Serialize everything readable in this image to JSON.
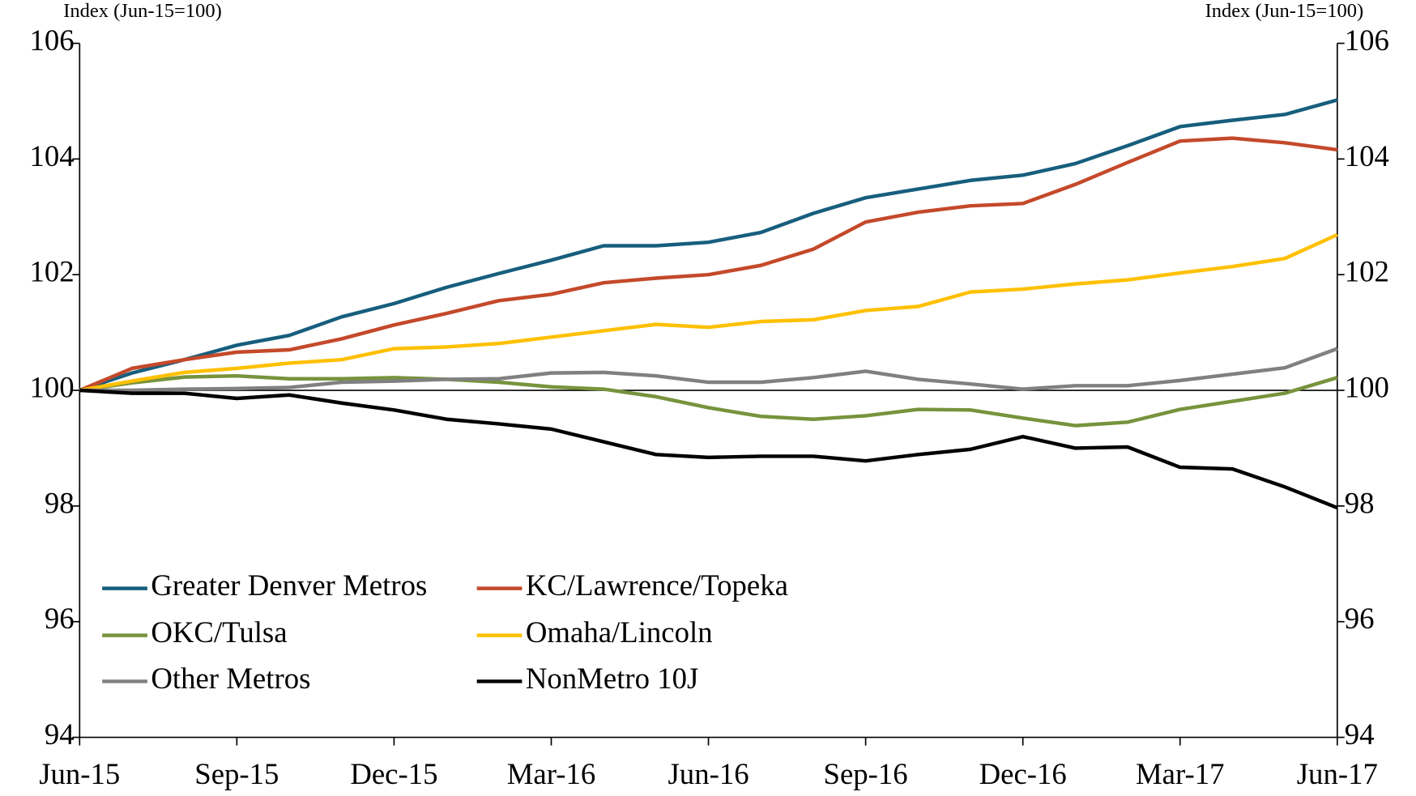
{
  "chart_data": {
    "type": "line",
    "y_label": "Index (Jun-15=100)",
    "y2_label": "Index (Jun-15=100)",
    "categories": [
      "Jun-15",
      null,
      null,
      "Sep-15",
      null,
      null,
      "Dec-15",
      null,
      null,
      "Mar-16",
      null,
      null,
      "Jun-16",
      null,
      null,
      "Sep-16",
      null,
      null,
      "Dec-16",
      null,
      null,
      "Mar-17",
      null,
      null,
      "Jun-17"
    ],
    "series": [
      {
        "name": "Greater Denver Metros",
        "color": "#175e7d",
        "values": [
          100,
          100.3,
          100.53,
          100.78,
          100.95,
          101.27,
          101.5,
          101.78,
          102.02,
          102.25,
          102.5,
          102.5,
          102.56,
          102.73,
          103.06,
          103.33,
          103.48,
          103.63,
          103.72,
          103.92,
          104.23,
          104.56,
          104.67,
          104.77,
          105.02
        ]
      },
      {
        "name": "KC/Lawrence/Topeka",
        "color": "#c4492a",
        "values": [
          100,
          100.38,
          100.53,
          100.66,
          100.7,
          100.89,
          101.13,
          101.33,
          101.55,
          101.66,
          101.86,
          101.94,
          102.0,
          102.16,
          102.44,
          102.91,
          103.08,
          103.19,
          103.23,
          103.56,
          103.94,
          104.31,
          104.36,
          104.28,
          104.16
        ]
      },
      {
        "name": "OKC/Tulsa",
        "color": "#77933c",
        "values": [
          100,
          100.13,
          100.23,
          100.25,
          100.2,
          100.2,
          100.22,
          100.19,
          100.14,
          100.06,
          100.02,
          99.89,
          99.7,
          99.55,
          99.5,
          99.56,
          99.67,
          99.66,
          99.52,
          99.39,
          99.45,
          99.67,
          99.81,
          99.95,
          100.22
        ]
      },
      {
        "name": "Omaha/Lincoln",
        "color": "#ffc000",
        "values": [
          100,
          100.16,
          100.31,
          100.38,
          100.47,
          100.53,
          100.72,
          100.75,
          100.81,
          100.92,
          101.03,
          101.14,
          101.09,
          101.19,
          101.22,
          101.38,
          101.45,
          101.7,
          101.75,
          101.84,
          101.91,
          102.03,
          102.14,
          102.28,
          102.69
        ]
      },
      {
        "name": "Other Metros",
        "color": "#808080",
        "values": [
          100,
          100,
          100.02,
          100.03,
          100.05,
          100.14,
          100.16,
          100.19,
          100.2,
          100.3,
          100.31,
          100.25,
          100.14,
          100.14,
          100.22,
          100.33,
          100.19,
          100.11,
          100.02,
          100.08,
          100.08,
          100.17,
          100.28,
          100.39,
          100.72
        ]
      },
      {
        "name": "NonMetro 10J",
        "color": "#000000",
        "values": [
          100,
          99.95,
          99.95,
          99.86,
          99.92,
          99.78,
          99.66,
          99.5,
          99.42,
          99.33,
          99.11,
          98.89,
          98.84,
          98.86,
          98.86,
          98.78,
          98.89,
          98.98,
          99.2,
          99.0,
          99.02,
          98.67,
          98.64,
          98.33,
          97.97
        ]
      }
    ],
    "ylim": [
      94,
      106
    ],
    "yticks": [
      94,
      96,
      98,
      100,
      102,
      104,
      106
    ],
    "y2lim": [
      94,
      106
    ],
    "y2ticks": [
      94,
      96,
      98,
      100,
      102,
      104,
      106
    ],
    "hline": 100,
    "grid": false,
    "legend": "lower left"
  }
}
